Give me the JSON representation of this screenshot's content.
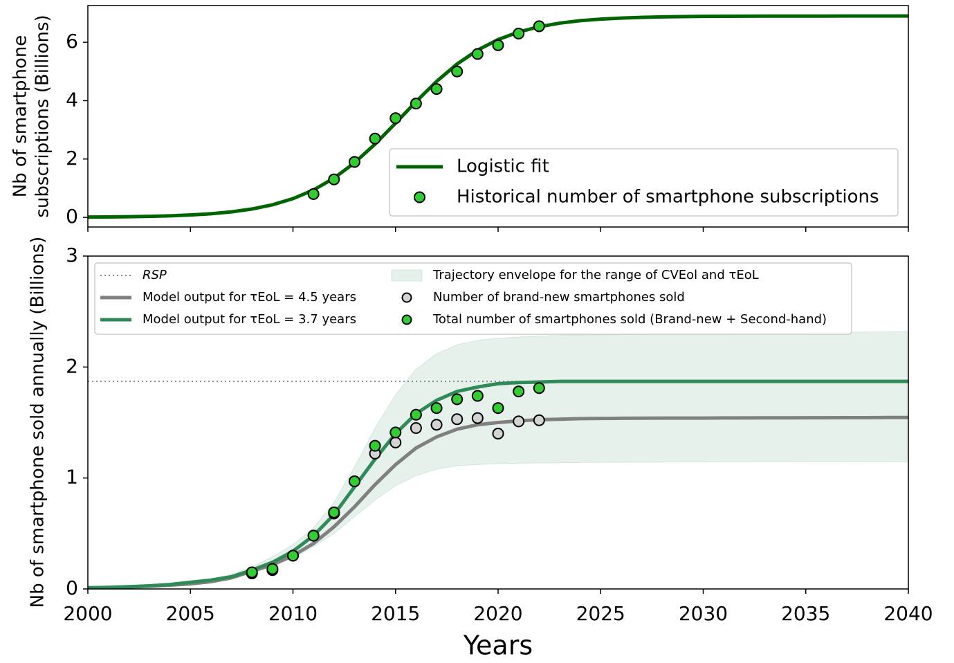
{
  "chart_data": [
    {
      "type": "line",
      "ylabel": [
        "Nb of smartphone",
        "subscriptions (Billions)"
      ],
      "xlim": [
        2000,
        2040
      ],
      "xticks": [
        2000,
        2005,
        2010,
        2015,
        2020,
        2025,
        2030,
        2035,
        2040
      ],
      "ylim": [
        -0.33,
        7.26
      ],
      "yticks": [
        0,
        2,
        4,
        6
      ],
      "legend": "lower right",
      "x": [
        2000,
        2001,
        2002,
        2003,
        2004,
        2005,
        2006,
        2007,
        2008,
        2009,
        2010,
        2011,
        2012,
        2013,
        2014,
        2015,
        2016,
        2017,
        2018,
        2019,
        2020,
        2021,
        2022,
        2023,
        2024,
        2025,
        2026,
        2027,
        2028,
        2029,
        2030,
        2031,
        2032,
        2033,
        2034,
        2035,
        2036,
        2037,
        2038,
        2039,
        2040
      ],
      "series": [
        {
          "name": "Logistic fit",
          "type": "line",
          "color": "#006400",
          "values": [
            0.01,
            0.015,
            0.023,
            0.035,
            0.053,
            0.081,
            0.124,
            0.189,
            0.286,
            0.431,
            0.641,
            0.939,
            1.345,
            1.87,
            2.51,
            3.227,
            3.966,
            4.659,
            5.255,
            5.731,
            6.093,
            6.352,
            6.533,
            6.657,
            6.74,
            6.795,
            6.831,
            6.855,
            6.871,
            6.881,
            6.888,
            6.893,
            6.896,
            6.897,
            6.898,
            6.899,
            6.899,
            6.9,
            6.9,
            6.9,
            6.9
          ]
        },
        {
          "name": "Historical number of smartphone subscriptions",
          "type": "scatter",
          "color": "#32cd32",
          "x": [
            2011,
            2012,
            2013,
            2014,
            2015,
            2016,
            2017,
            2018,
            2019,
            2020,
            2021,
            2022
          ],
          "values": [
            0.8,
            1.3,
            1.9,
            2.7,
            3.4,
            3.9,
            4.4,
            5.0,
            5.6,
            5.9,
            6.3,
            6.55
          ]
        }
      ]
    },
    {
      "type": "line",
      "ylabel": "Nb of smartphone sold annually (Billions)",
      "xlabel": "Years",
      "xlim": [
        2000,
        2040
      ],
      "xticks": [
        2000,
        2005,
        2010,
        2015,
        2020,
        2025,
        2030,
        2035,
        2040
      ],
      "ylim": [
        0,
        3
      ],
      "yticks": [
        0,
        1,
        2,
        3
      ],
      "legend": "upper left",
      "x": [
        2000,
        2001,
        2002,
        2003,
        2004,
        2005,
        2006,
        2007,
        2008,
        2009,
        2010,
        2011,
        2012,
        2013,
        2014,
        2015,
        2016,
        2017,
        2018,
        2019,
        2020,
        2021,
        2022,
        2023,
        2024,
        2025,
        2026,
        2027,
        2028,
        2029,
        2030,
        2031,
        2032,
        2033,
        2034,
        2035,
        2036,
        2037,
        2038,
        2039,
        2040
      ],
      "series": [
        {
          "name": "RSP",
          "type": "hline",
          "color": "#888888",
          "y": 1.87
        },
        {
          "name": "Model output for τEoL = 4.5 years",
          "type": "line",
          "color": "#808080",
          "values": [
            0.01,
            0.013,
            0.018,
            0.025,
            0.034,
            0.046,
            0.065,
            0.1,
            0.16,
            0.22,
            0.3,
            0.41,
            0.56,
            0.74,
            0.94,
            1.12,
            1.27,
            1.37,
            1.44,
            1.48,
            1.5,
            1.515,
            1.525,
            1.53,
            1.535,
            1.537,
            1.538,
            1.539,
            1.54,
            1.54,
            1.54,
            1.541,
            1.541,
            1.542,
            1.542,
            1.543,
            1.543,
            1.544,
            1.544,
            1.545,
            1.545
          ]
        },
        {
          "name": "Model output for τEoL = 3.7 years",
          "type": "line",
          "color": "#2e8b57",
          "values": [
            0.01,
            0.014,
            0.02,
            0.028,
            0.04,
            0.06,
            0.08,
            0.11,
            0.17,
            0.24,
            0.34,
            0.48,
            0.67,
            0.92,
            1.17,
            1.4,
            1.58,
            1.7,
            1.78,
            1.82,
            1.85,
            1.86,
            1.865,
            1.87,
            1.87,
            1.87,
            1.87,
            1.87,
            1.87,
            1.87,
            1.87,
            1.87,
            1.87,
            1.87,
            1.87,
            1.87,
            1.87,
            1.87,
            1.87,
            1.87,
            1.87
          ]
        },
        {
          "name": "Trajectory envelope for the range of CVEol and τEoL",
          "type": "band",
          "color": "#2e8b57",
          "upper": [
            0.01,
            0.015,
            0.021,
            0.03,
            0.044,
            0.065,
            0.09,
            0.13,
            0.2,
            0.29,
            0.4,
            0.55,
            0.78,
            1.1,
            1.45,
            1.75,
            1.98,
            2.12,
            2.2,
            2.24,
            2.26,
            2.27,
            2.28,
            2.285,
            2.288,
            2.29,
            2.292,
            2.294,
            2.296,
            2.298,
            2.3,
            2.302,
            2.304,
            2.306,
            2.308,
            2.31,
            2.312,
            2.314,
            2.316,
            2.318,
            2.32
          ],
          "lower": [
            0.01,
            0.012,
            0.016,
            0.022,
            0.03,
            0.042,
            0.06,
            0.09,
            0.14,
            0.2,
            0.28,
            0.38,
            0.5,
            0.65,
            0.8,
            0.93,
            1.02,
            1.08,
            1.11,
            1.12,
            1.13,
            1.133,
            1.135,
            1.137,
            1.139,
            1.14,
            1.141,
            1.142,
            1.143,
            1.144,
            1.145,
            1.146,
            1.146,
            1.147,
            1.147,
            1.148,
            1.148,
            1.149,
            1.149,
            1.15,
            1.15
          ]
        },
        {
          "name": "Number of brand-new smartphones sold",
          "type": "scatter",
          "color": "#d3d3d3",
          "x": [
            2008,
            2009,
            2010,
            2011,
            2012,
            2013,
            2014,
            2015,
            2016,
            2017,
            2018,
            2019,
            2020,
            2021,
            2022
          ],
          "values": [
            0.14,
            0.17,
            0.3,
            0.48,
            0.68,
            0.97,
            1.22,
            1.32,
            1.45,
            1.48,
            1.53,
            1.54,
            1.4,
            1.51,
            1.52
          ]
        },
        {
          "name": "Total number of smartphones sold (Brand-new + Second-hand)",
          "type": "scatter",
          "color": "#32cd32",
          "x": [
            2008,
            2009,
            2010,
            2011,
            2012,
            2013,
            2014,
            2015,
            2016,
            2017,
            2018,
            2019,
            2020,
            2021,
            2022
          ],
          "values": [
            0.15,
            0.18,
            0.3,
            0.48,
            0.69,
            0.97,
            1.29,
            1.41,
            1.57,
            1.63,
            1.71,
            1.74,
            1.63,
            1.78,
            1.81
          ]
        }
      ]
    }
  ]
}
